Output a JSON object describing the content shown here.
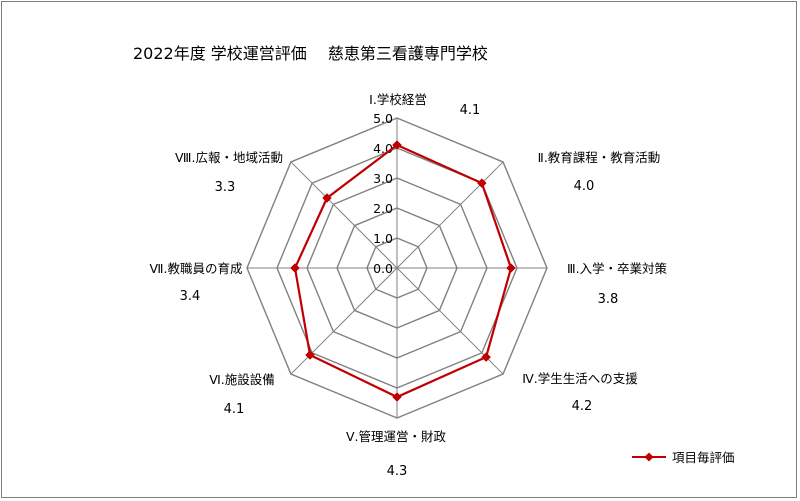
{
  "chart_data": {
    "type": "radar",
    "title": "2022年度  学校運営評価　 慈恵第三看護専門学校",
    "categories": [
      "Ⅰ.学校経営",
      "Ⅱ.教育課程・教育活動",
      "Ⅲ.入学・卒業対策",
      "Ⅳ.学生生活への支援",
      "Ⅴ.管理運営・財政",
      "Ⅵ.施設設備",
      "Ⅶ.教職員の育成",
      "Ⅷ.広報・地域活動"
    ],
    "series": [
      {
        "name": "項目毎評価",
        "values": [
          4.1,
          4.0,
          3.8,
          4.2,
          4.3,
          4.1,
          3.4,
          3.3
        ],
        "color": "#c00000"
      }
    ],
    "value_labels": [
      "4.1",
      "4.0",
      "3.8",
      "4.2",
      "4.3",
      "4.1",
      "3.4",
      "3.3"
    ],
    "rlim": [
      0,
      5
    ],
    "ticks": [
      "0.0",
      "1.0",
      "2.0",
      "3.0",
      "4.0",
      "5.0"
    ],
    "grid": true,
    "legend_position": "bottom-right",
    "grid_color": "#808080"
  }
}
